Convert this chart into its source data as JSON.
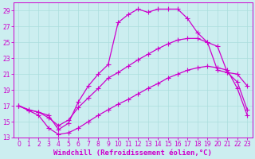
{
  "xlabel": "Windchill (Refroidissement éolien,°C)",
  "bg_color": "#cceef0",
  "line_color": "#cc00cc",
  "grid_color": "#aadddd",
  "xlim": [
    -0.5,
    23.5
  ],
  "ylim": [
    13,
    30
  ],
  "xticks": [
    0,
    1,
    2,
    3,
    4,
    5,
    6,
    7,
    8,
    9,
    10,
    11,
    12,
    13,
    14,
    15,
    16,
    17,
    18,
    19,
    20,
    21,
    22,
    23
  ],
  "yticks": [
    13,
    15,
    17,
    19,
    21,
    23,
    25,
    27,
    29
  ],
  "line_upper_x": [
    0,
    1,
    2,
    3,
    4,
    5,
    6,
    7,
    8,
    9,
    10,
    11,
    12,
    13,
    14,
    15,
    16,
    17,
    18,
    19,
    20,
    21,
    22,
    23
  ],
  "line_upper_y": [
    17.0,
    16.5,
    16.2,
    15.8,
    14.0,
    14.8,
    17.5,
    19.5,
    21.0,
    22.2,
    27.5,
    28.5,
    29.2,
    28.8,
    29.2,
    29.2,
    29.2,
    28.0,
    26.2,
    25.0,
    24.5,
    21.2,
    21.0,
    19.5
  ],
  "line_mid_x": [
    0,
    1,
    2,
    3,
    4,
    5,
    6,
    7,
    8,
    9,
    10,
    11,
    12,
    13,
    14,
    15,
    16,
    17,
    18,
    19,
    20,
    21,
    22,
    23
  ],
  "line_mid_y": [
    17.0,
    16.5,
    16.2,
    15.5,
    14.5,
    15.2,
    16.8,
    18.0,
    19.2,
    20.5,
    21.2,
    22.0,
    22.8,
    23.5,
    24.2,
    24.8,
    25.3,
    25.5,
    25.5,
    25.0,
    21.5,
    21.2,
    20.0,
    16.5
  ],
  "line_lower_x": [
    0,
    1,
    2,
    3,
    4,
    5,
    6,
    7,
    8,
    9,
    10,
    11,
    12,
    13,
    14,
    15,
    16,
    17,
    18,
    19,
    20,
    21,
    22,
    23
  ],
  "line_lower_y": [
    17.0,
    16.4,
    15.8,
    14.2,
    13.4,
    13.6,
    14.2,
    15.0,
    15.8,
    16.5,
    17.2,
    17.8,
    18.5,
    19.2,
    19.8,
    20.5,
    21.0,
    21.5,
    21.8,
    22.0,
    21.8,
    21.5,
    19.2,
    15.8
  ],
  "tick_fontsize": 5.5,
  "label_fontsize": 6.5
}
